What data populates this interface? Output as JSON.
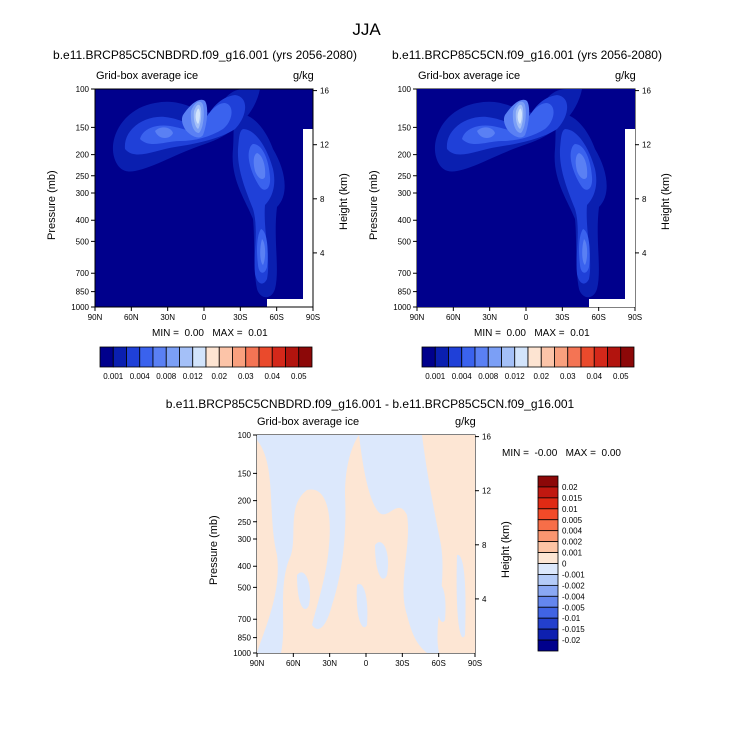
{
  "figure": {
    "title": "JJA"
  },
  "colors": {
    "bg_dark": "#00008c",
    "levels": [
      "#00008c",
      "#0a1fb0",
      "#1f40d8",
      "#3a62ee",
      "#5a80f4",
      "#7b9ff6",
      "#a4c0f8",
      "#d2e4fc",
      "#fde4d2",
      "#fcc4a8",
      "#f9a07e",
      "#f47454",
      "#ea4a2c",
      "#d4281a",
      "#b2140e",
      "#8c0808"
    ]
  },
  "panels": [
    {
      "id": "left",
      "title": "b.e11.BRCP85C5CNBDRD.f09_g16.001 (yrs 2056-2080)",
      "variable": "Grid-box average ice",
      "units": "g/kg",
      "ylabel_left": "Pressure (mb)",
      "ylabel_right": "Height (km)",
      "min_label": "MIN =",
      "min_value": "0.00",
      "max_label": "MAX =",
      "max_value": "0.01"
    },
    {
      "id": "right",
      "title": "b.e11.BRCP85C5CN.f09_g16.001 (yrs 2056-2080)",
      "variable": "Grid-box average ice",
      "units": "g/kg",
      "ylabel_left": "Pressure (mb)",
      "ylabel_right": "Height (km)",
      "min_label": "MIN =",
      "min_value": "0.00",
      "max_label": "MAX =",
      "max_value": "0.01"
    }
  ],
  "diff_panel": {
    "title": "b.e11.BRCP85C5CNBDRD.f09_g16.001 - b.e11.BRCP85C5CN.f09_g16.001",
    "variable": "Grid-box average ice",
    "units": "g/kg",
    "ylabel_left": "Pressure (mb)",
    "ylabel_right": "Height (km)",
    "min_label": "MIN =",
    "min_value": "-0.00",
    "max_label": "MAX =",
    "max_value": "0.00"
  },
  "chart_data": [
    {
      "type": "heatmap",
      "title": "b.e11.BRCP85C5CNBDRD.f09_g16.001 (yrs 2056-2080)",
      "subtitle_left": "Grid-box average ice",
      "subtitle_right": "g/kg",
      "xlabel": "",
      "ylabel": "Pressure (mb)",
      "ylabel_right": "Height (km)",
      "x_ticks": [
        "90N",
        "60N",
        "30N",
        "0",
        "30S",
        "60S",
        "90S"
      ],
      "x_values": [
        90,
        60,
        30,
        0,
        -30,
        -60,
        -90
      ],
      "y_ticks": [
        "100",
        "150",
        "200",
        "250",
        "300",
        "400",
        "500",
        "700",
        "850",
        "1000"
      ],
      "y_values": [
        100,
        150,
        200,
        250,
        300,
        400,
        500,
        700,
        850,
        1000
      ],
      "y_right_ticks": [
        "16",
        "12",
        "8",
        "4"
      ],
      "y_right_values": [
        16,
        12,
        8,
        4
      ],
      "xlim": [
        90,
        -90
      ],
      "ylim": [
        100,
        1000
      ],
      "colorbar_levels": [
        0.001,
        0.002,
        0.004,
        0.006,
        0.008,
        0.01,
        0.012,
        0.015,
        0.02,
        0.025,
        0.03,
        0.035,
        0.04,
        0.045,
        0.05
      ],
      "colorbar_labels": [
        "0.001",
        "0.004",
        "0.008",
        "0.012",
        "0.02",
        "0.03",
        "0.04",
        "0.05"
      ],
      "stats": {
        "min": 0.0,
        "max": 0.01
      },
      "features": [
        {
          "lat": -12,
          "p": 210,
          "value": 0.012
        },
        {
          "lat": 45,
          "p": 260,
          "value": 0.004
        },
        {
          "lat": -62,
          "p": 360,
          "value": 0.004
        },
        {
          "lat": -66,
          "p": 720,
          "value": 0.004
        }
      ]
    },
    {
      "type": "heatmap",
      "title": "b.e11.BRCP85C5CN.f09_g16.001 (yrs 2056-2080)",
      "subtitle_left": "Grid-box average ice",
      "subtitle_right": "g/kg",
      "xlabel": "",
      "ylabel": "Pressure (mb)",
      "ylabel_right": "Height (km)",
      "x_ticks": [
        "90N",
        "60N",
        "30N",
        "0",
        "30S",
        "60S",
        "90S"
      ],
      "x_values": [
        90,
        60,
        30,
        0,
        -30,
        -60,
        -90
      ],
      "y_ticks": [
        "100",
        "150",
        "200",
        "250",
        "300",
        "400",
        "500",
        "700",
        "850",
        "1000"
      ],
      "y_values": [
        100,
        150,
        200,
        250,
        300,
        400,
        500,
        700,
        850,
        1000
      ],
      "y_right_ticks": [
        "16",
        "12",
        "8",
        "4"
      ],
      "y_right_values": [
        16,
        12,
        8,
        4
      ],
      "xlim": [
        90,
        -90
      ],
      "ylim": [
        100,
        1000
      ],
      "colorbar_levels": [
        0.001,
        0.002,
        0.004,
        0.006,
        0.008,
        0.01,
        0.012,
        0.015,
        0.02,
        0.025,
        0.03,
        0.035,
        0.04,
        0.045,
        0.05
      ],
      "colorbar_labels": [
        "0.001",
        "0.004",
        "0.008",
        "0.012",
        "0.02",
        "0.03",
        "0.04",
        "0.05"
      ],
      "stats": {
        "min": 0.0,
        "max": 0.01
      },
      "features": [
        {
          "lat": -12,
          "p": 210,
          "value": 0.012
        },
        {
          "lat": 45,
          "p": 260,
          "value": 0.004
        },
        {
          "lat": -62,
          "p": 360,
          "value": 0.004
        },
        {
          "lat": -66,
          "p": 720,
          "value": 0.004
        }
      ]
    },
    {
      "type": "heatmap",
      "title": "b.e11.BRCP85C5CNBDRD.f09_g16.001 - b.e11.BRCP85C5CN.f09_g16.001",
      "subtitle_left": "Grid-box average ice",
      "subtitle_right": "g/kg",
      "xlabel": "",
      "ylabel": "Pressure (mb)",
      "ylabel_right": "Height (km)",
      "x_ticks": [
        "90N",
        "60N",
        "30N",
        "0",
        "30S",
        "60S",
        "90S"
      ],
      "x_values": [
        90,
        60,
        30,
        0,
        -30,
        -60,
        -90
      ],
      "y_ticks": [
        "100",
        "150",
        "200",
        "250",
        "300",
        "400",
        "500",
        "700",
        "850",
        "1000"
      ],
      "y_values": [
        100,
        150,
        200,
        250,
        300,
        400,
        500,
        700,
        850,
        1000
      ],
      "y_right_ticks": [
        "16",
        "12",
        "8",
        "4"
      ],
      "y_right_values": [
        16,
        12,
        8,
        4
      ],
      "xlim": [
        90,
        -90
      ],
      "ylim": [
        100,
        1000
      ],
      "colorbar_levels": [
        -0.02,
        -0.015,
        -0.01,
        -0.005,
        -0.004,
        -0.002,
        -0.001,
        0,
        0.001,
        0.002,
        0.004,
        0.005,
        0.01,
        0.015,
        0.02
      ],
      "colorbar_labels": [
        "0.02",
        "0.015",
        "0.01",
        "0.005",
        "0.004",
        "0.002",
        "0.001",
        "0",
        "-0.001",
        "-0.002",
        "-0.004",
        "-0.005",
        "-0.01",
        "-0.015",
        "-0.02"
      ],
      "diff_colors": [
        "#8c0808",
        "#c01810",
        "#e02a14",
        "#f24a28",
        "#f76e48",
        "#fa9670",
        "#fdc4a4",
        "#fde6d4",
        "#dce8fc",
        "#b4cbf8",
        "#8aa8f4",
        "#6486ee",
        "#4064e4",
        "#2340cc",
        "#0e20b0",
        "#00008c"
      ],
      "stats": {
        "min": -0.0,
        "max": 0.0
      }
    }
  ]
}
